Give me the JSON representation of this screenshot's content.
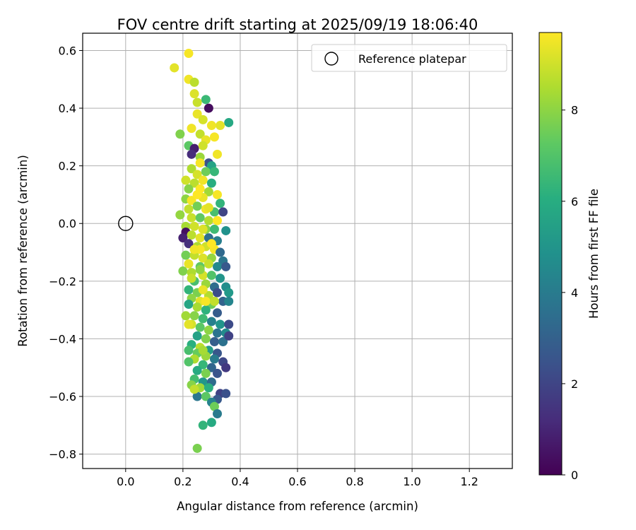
{
  "chart_data": {
    "type": "scatter",
    "title": "FOV centre drift starting at 2025/09/19 18:06:40",
    "xlabel": "Angular distance from reference (arcmin)",
    "ylabel": "Rotation from reference (arcmin)",
    "xlim": [
      -0.15,
      1.35
    ],
    "ylim": [
      -0.85,
      0.66
    ],
    "xticks": [
      0.0,
      0.2,
      0.4,
      0.6,
      0.8,
      1.0,
      1.2
    ],
    "xtick_labels": [
      "0.0",
      "0.2",
      "0.4",
      "0.6",
      "0.8",
      "1.0",
      "1.2"
    ],
    "yticks": [
      0.6,
      0.4,
      0.2,
      0.0,
      -0.2,
      -0.4,
      -0.6,
      -0.8
    ],
    "ytick_labels": [
      "0.6",
      "0.4",
      "0.2",
      "0.0",
      "−0.2",
      "−0.4",
      "−0.6",
      "−0.8"
    ],
    "grid": true,
    "legend": {
      "placement": "top-right",
      "entries": [
        "Reference platepar"
      ]
    },
    "reference_point": {
      "x": 0.0,
      "y": 0.0
    },
    "colorbar": {
      "label": "Hours from first FF file",
      "range": [
        0,
        9.7
      ],
      "ticks": [
        0,
        2,
        4,
        6,
        8
      ],
      "tick_labels": [
        "0",
        "2",
        "4",
        "6",
        "8"
      ],
      "colormap": "viridis"
    },
    "points": [
      {
        "x": 0.17,
        "y": 0.54,
        "h": 9.3
      },
      {
        "x": 0.22,
        "y": 0.59,
        "h": 9.6
      },
      {
        "x": 0.22,
        "y": 0.5,
        "h": 9.5
      },
      {
        "x": 0.24,
        "y": 0.49,
        "h": 8.7
      },
      {
        "x": 0.28,
        "y": 0.43,
        "h": 6.5
      },
      {
        "x": 0.29,
        "y": 0.4,
        "h": 0.3
      },
      {
        "x": 0.24,
        "y": 0.45,
        "h": 9.2
      },
      {
        "x": 0.25,
        "y": 0.42,
        "h": 8.9
      },
      {
        "x": 0.36,
        "y": 0.35,
        "h": 5.8
      },
      {
        "x": 0.33,
        "y": 0.34,
        "h": 9.3
      },
      {
        "x": 0.3,
        "y": 0.34,
        "h": 9.5
      },
      {
        "x": 0.25,
        "y": 0.38,
        "h": 9.4
      },
      {
        "x": 0.27,
        "y": 0.36,
        "h": 9.1
      },
      {
        "x": 0.19,
        "y": 0.31,
        "h": 7.8
      },
      {
        "x": 0.23,
        "y": 0.33,
        "h": 9.5
      },
      {
        "x": 0.26,
        "y": 0.31,
        "h": 8.8
      },
      {
        "x": 0.28,
        "y": 0.29,
        "h": 9.4
      },
      {
        "x": 0.31,
        "y": 0.3,
        "h": 9.6
      },
      {
        "x": 0.22,
        "y": 0.27,
        "h": 7.2
      },
      {
        "x": 0.24,
        "y": 0.26,
        "h": 0.8
      },
      {
        "x": 0.27,
        "y": 0.27,
        "h": 9.0
      },
      {
        "x": 0.32,
        "y": 0.24,
        "h": 9.5
      },
      {
        "x": 0.23,
        "y": 0.24,
        "h": 1.2
      },
      {
        "x": 0.26,
        "y": 0.23,
        "h": 8.2
      },
      {
        "x": 0.29,
        "y": 0.21,
        "h": 2.4
      },
      {
        "x": 0.3,
        "y": 0.2,
        "h": 5.6
      },
      {
        "x": 0.23,
        "y": 0.19,
        "h": 8.5
      },
      {
        "x": 0.25,
        "y": 0.17,
        "h": 9.1
      },
      {
        "x": 0.28,
        "y": 0.18,
        "h": 7.5
      },
      {
        "x": 0.31,
        "y": 0.18,
        "h": 6.4
      },
      {
        "x": 0.21,
        "y": 0.15,
        "h": 9.0
      },
      {
        "x": 0.24,
        "y": 0.14,
        "h": 8.7
      },
      {
        "x": 0.27,
        "y": 0.15,
        "h": 9.5
      },
      {
        "x": 0.3,
        "y": 0.14,
        "h": 6.0
      },
      {
        "x": 0.22,
        "y": 0.12,
        "h": 7.9
      },
      {
        "x": 0.26,
        "y": 0.12,
        "h": 9.7
      },
      {
        "x": 0.29,
        "y": 0.11,
        "h": 8.3
      },
      {
        "x": 0.32,
        "y": 0.1,
        "h": 9.6
      },
      {
        "x": 0.21,
        "y": 0.085,
        "h": 8.0
      },
      {
        "x": 0.23,
        "y": 0.08,
        "h": 9.6
      },
      {
        "x": 0.27,
        "y": 0.09,
        "h": 9.4
      },
      {
        "x": 0.33,
        "y": 0.07,
        "h": 6.3
      },
      {
        "x": 0.22,
        "y": 0.05,
        "h": 8.8
      },
      {
        "x": 0.25,
        "y": 0.06,
        "h": 7.6
      },
      {
        "x": 0.28,
        "y": 0.05,
        "h": 9.5
      },
      {
        "x": 0.31,
        "y": 0.04,
        "h": 6.8
      },
      {
        "x": 0.34,
        "y": 0.04,
        "h": 2.0
      },
      {
        "x": 0.19,
        "y": 0.03,
        "h": 8.1
      },
      {
        "x": 0.23,
        "y": 0.02,
        "h": 8.9
      },
      {
        "x": 0.26,
        "y": 0.02,
        "h": 7.3
      },
      {
        "x": 0.29,
        "y": 0.01,
        "h": 8.6
      },
      {
        "x": 0.32,
        "y": 0.01,
        "h": 9.7
      },
      {
        "x": 0.21,
        "y": -0.01,
        "h": 8.4
      },
      {
        "x": 0.24,
        "y": -0.01,
        "h": 9.0
      },
      {
        "x": 0.28,
        "y": -0.02,
        "h": 8.0
      },
      {
        "x": 0.31,
        "y": -0.02,
        "h": 6.6
      },
      {
        "x": 0.35,
        "y": -0.025,
        "h": 4.9
      },
      {
        "x": 0.21,
        "y": -0.03,
        "h": 0.4
      },
      {
        "x": 0.23,
        "y": -0.04,
        "h": 8.7
      },
      {
        "x": 0.26,
        "y": -0.05,
        "h": 9.3
      },
      {
        "x": 0.29,
        "y": -0.05,
        "h": 3.5
      },
      {
        "x": 0.32,
        "y": -0.06,
        "h": 4.1
      },
      {
        "x": 0.2,
        "y": -0.05,
        "h": 0.9
      },
      {
        "x": 0.22,
        "y": -0.07,
        "h": 1.3
      },
      {
        "x": 0.25,
        "y": -0.08,
        "h": 8.5
      },
      {
        "x": 0.28,
        "y": -0.08,
        "h": 9.0
      },
      {
        "x": 0.31,
        "y": -0.09,
        "h": 9.6
      },
      {
        "x": 0.33,
        "y": -0.1,
        "h": 3.3
      },
      {
        "x": 0.21,
        "y": -0.11,
        "h": 7.6
      },
      {
        "x": 0.24,
        "y": -0.11,
        "h": 8.8
      },
      {
        "x": 0.27,
        "y": -0.12,
        "h": 9.2
      },
      {
        "x": 0.3,
        "y": -0.12,
        "h": 8.1
      },
      {
        "x": 0.34,
        "y": -0.13,
        "h": 3.8
      },
      {
        "x": 0.22,
        "y": -0.14,
        "h": 9.4
      },
      {
        "x": 0.26,
        "y": -0.15,
        "h": 7.3
      },
      {
        "x": 0.29,
        "y": -0.14,
        "h": 8.9
      },
      {
        "x": 0.32,
        "y": -0.15,
        "h": 4.5
      },
      {
        "x": 0.35,
        "y": -0.15,
        "h": 2.7
      },
      {
        "x": 0.2,
        "y": -0.165,
        "h": 7.8
      },
      {
        "x": 0.23,
        "y": -0.17,
        "h": 8.5
      },
      {
        "x": 0.27,
        "y": -0.18,
        "h": 9.1
      },
      {
        "x": 0.3,
        "y": -0.18,
        "h": 7.0
      },
      {
        "x": 0.33,
        "y": -0.19,
        "h": 5.0
      },
      {
        "x": 0.24,
        "y": -0.2,
        "h": 6.8
      },
      {
        "x": 0.28,
        "y": -0.21,
        "h": 8.2
      },
      {
        "x": 0.31,
        "y": -0.22,
        "h": 3.4
      },
      {
        "x": 0.35,
        "y": -0.22,
        "h": 4.7
      },
      {
        "x": 0.22,
        "y": -0.23,
        "h": 6.3
      },
      {
        "x": 0.25,
        "y": -0.24,
        "h": 7.7
      },
      {
        "x": 0.29,
        "y": -0.25,
        "h": 8.6
      },
      {
        "x": 0.32,
        "y": -0.24,
        "h": 2.3
      },
      {
        "x": 0.36,
        "y": -0.24,
        "h": 5.2
      },
      {
        "x": 0.23,
        "y": -0.26,
        "h": 8.0
      },
      {
        "x": 0.26,
        "y": -0.27,
        "h": 9.3
      },
      {
        "x": 0.3,
        "y": -0.28,
        "h": 7.5
      },
      {
        "x": 0.34,
        "y": -0.27,
        "h": 3.1
      },
      {
        "x": 0.36,
        "y": -0.27,
        "h": 4.4
      },
      {
        "x": 0.22,
        "y": -0.28,
        "h": 5.7
      },
      {
        "x": 0.25,
        "y": -0.29,
        "h": 8.4
      },
      {
        "x": 0.28,
        "y": -0.3,
        "h": 6.2
      },
      {
        "x": 0.32,
        "y": -0.31,
        "h": 2.8
      },
      {
        "x": 0.24,
        "y": -0.32,
        "h": 7.9
      },
      {
        "x": 0.27,
        "y": -0.33,
        "h": 6.6
      },
      {
        "x": 0.21,
        "y": -0.32,
        "h": 8.3
      },
      {
        "x": 0.3,
        "y": -0.34,
        "h": 4.2
      },
      {
        "x": 0.33,
        "y": -0.35,
        "h": 5.0
      },
      {
        "x": 0.36,
        "y": -0.35,
        "h": 2.2
      },
      {
        "x": 0.23,
        "y": -0.35,
        "h": 9.1
      },
      {
        "x": 0.26,
        "y": -0.36,
        "h": 7.2
      },
      {
        "x": 0.29,
        "y": -0.37,
        "h": 8.0
      },
      {
        "x": 0.32,
        "y": -0.38,
        "h": 3.7
      },
      {
        "x": 0.35,
        "y": -0.38,
        "h": 4.6
      },
      {
        "x": 0.25,
        "y": -0.39,
        "h": 5.5
      },
      {
        "x": 0.28,
        "y": -0.4,
        "h": 7.8
      },
      {
        "x": 0.31,
        "y": -0.41,
        "h": 2.9
      },
      {
        "x": 0.34,
        "y": -0.41,
        "h": 3.6
      },
      {
        "x": 0.36,
        "y": -0.39,
        "h": 1.9
      },
      {
        "x": 0.23,
        "y": -0.42,
        "h": 6.1
      },
      {
        "x": 0.26,
        "y": -0.43,
        "h": 8.7
      },
      {
        "x": 0.29,
        "y": -0.44,
        "h": 5.3
      },
      {
        "x": 0.32,
        "y": -0.45,
        "h": 2.6
      },
      {
        "x": 0.22,
        "y": -0.44,
        "h": 6.8
      },
      {
        "x": 0.25,
        "y": -0.45,
        "h": 7.4
      },
      {
        "x": 0.28,
        "y": -0.46,
        "h": 8.2
      },
      {
        "x": 0.31,
        "y": -0.47,
        "h": 4.0
      },
      {
        "x": 0.34,
        "y": -0.48,
        "h": 2.1
      },
      {
        "x": 0.24,
        "y": -0.47,
        "h": 8.5
      },
      {
        "x": 0.27,
        "y": -0.49,
        "h": 6.4
      },
      {
        "x": 0.3,
        "y": -0.5,
        "h": 3.2
      },
      {
        "x": 0.35,
        "y": -0.5,
        "h": 1.6
      },
      {
        "x": 0.22,
        "y": -0.48,
        "h": 7.0
      },
      {
        "x": 0.25,
        "y": -0.51,
        "h": 5.9
      },
      {
        "x": 0.28,
        "y": -0.52,
        "h": 7.7
      },
      {
        "x": 0.32,
        "y": -0.52,
        "h": 2.5
      },
      {
        "x": 0.24,
        "y": -0.54,
        "h": 6.7
      },
      {
        "x": 0.27,
        "y": -0.55,
        "h": 5.1
      },
      {
        "x": 0.3,
        "y": -0.55,
        "h": 3.4
      },
      {
        "x": 0.23,
        "y": -0.56,
        "h": 7.9
      },
      {
        "x": 0.26,
        "y": -0.57,
        "h": 8.3
      },
      {
        "x": 0.29,
        "y": -0.57,
        "h": 6.1
      },
      {
        "x": 0.33,
        "y": -0.59,
        "h": 1.9
      },
      {
        "x": 0.35,
        "y": -0.59,
        "h": 2.4
      },
      {
        "x": 0.25,
        "y": -0.6,
        "h": 3.8
      },
      {
        "x": 0.28,
        "y": -0.6,
        "h": 7.2
      },
      {
        "x": 0.24,
        "y": -0.575,
        "h": 8.8
      },
      {
        "x": 0.32,
        "y": -0.61,
        "h": 2.7
      },
      {
        "x": 0.3,
        "y": -0.62,
        "h": 4.3
      },
      {
        "x": 0.31,
        "y": -0.635,
        "h": 7.5
      },
      {
        "x": 0.32,
        "y": -0.66,
        "h": 4.0
      },
      {
        "x": 0.27,
        "y": -0.7,
        "h": 6.3
      },
      {
        "x": 0.3,
        "y": -0.69,
        "h": 5.9
      },
      {
        "x": 0.25,
        "y": -0.78,
        "h": 7.7
      },
      {
        "x": 0.26,
        "y": -0.09,
        "h": 9.6
      },
      {
        "x": 0.27,
        "y": -0.02,
        "h": 9.2
      },
      {
        "x": 0.25,
        "y": 0.1,
        "h": 9.7
      },
      {
        "x": 0.28,
        "y": -0.27,
        "h": 9.6
      },
      {
        "x": 0.27,
        "y": -0.23,
        "h": 9.4
      },
      {
        "x": 0.24,
        "y": -0.09,
        "h": 9.5
      },
      {
        "x": 0.3,
        "y": -0.07,
        "h": 9.7
      },
      {
        "x": 0.29,
        "y": 0.055,
        "h": 9.3
      },
      {
        "x": 0.26,
        "y": 0.21,
        "h": 9.6
      },
      {
        "x": 0.23,
        "y": -0.19,
        "h": 8.9
      },
      {
        "x": 0.31,
        "y": -0.27,
        "h": 8.8
      },
      {
        "x": 0.22,
        "y": -0.35,
        "h": 9.3
      },
      {
        "x": 0.27,
        "y": -0.44,
        "h": 8.4
      },
      {
        "x": 0.26,
        "y": -0.16,
        "h": 8.0
      }
    ]
  }
}
